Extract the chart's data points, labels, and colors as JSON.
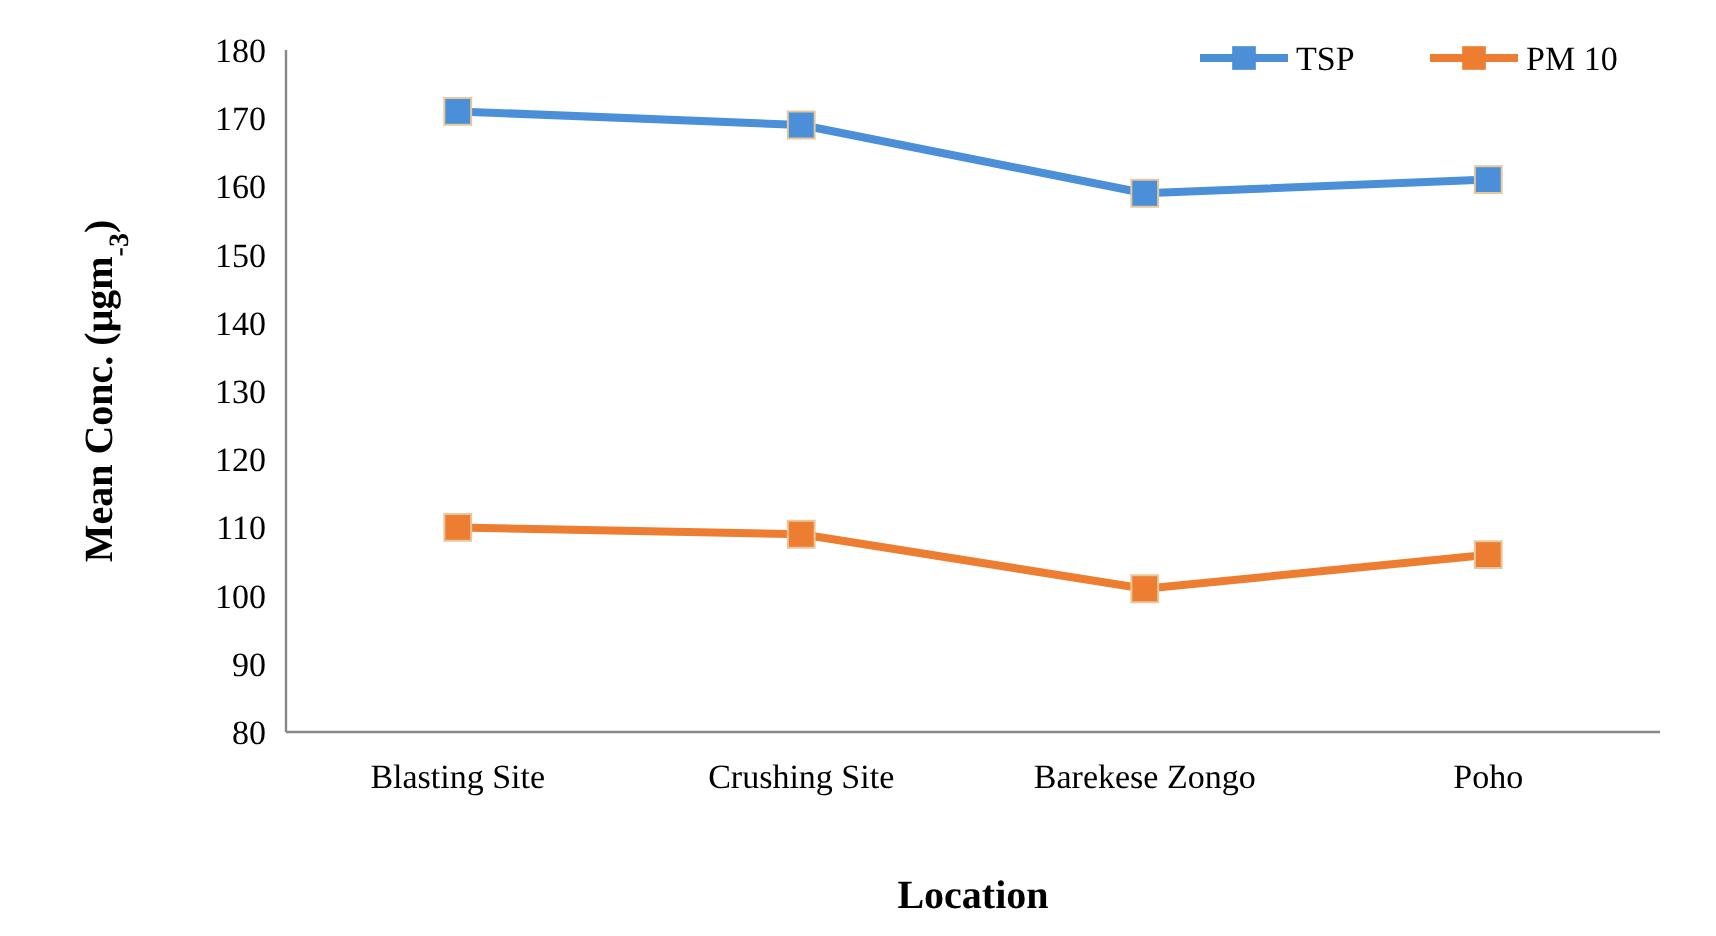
{
  "chart_data": {
    "type": "line",
    "xlabel": "Location",
    "ylabel": "Mean Conc. (μgm$_{-3}$)",
    "categories": [
      "Blasting Site",
      "Crushing Site",
      "Barekese Zongo",
      "Poho"
    ],
    "series": [
      {
        "name": "TSP",
        "color": "#4a8fd8",
        "values": [
          171,
          169,
          159,
          161
        ]
      },
      {
        "name": "PM 10",
        "color": "#ed7d31",
        "values": [
          110,
          109,
          101,
          106
        ]
      }
    ],
    "ylim": [
      80,
      180
    ],
    "yticks": [
      80,
      90,
      100,
      110,
      120,
      130,
      140,
      150,
      160,
      170,
      180
    ],
    "grid": false,
    "legend": "top right",
    "marker": "square",
    "line_style": "solid"
  }
}
